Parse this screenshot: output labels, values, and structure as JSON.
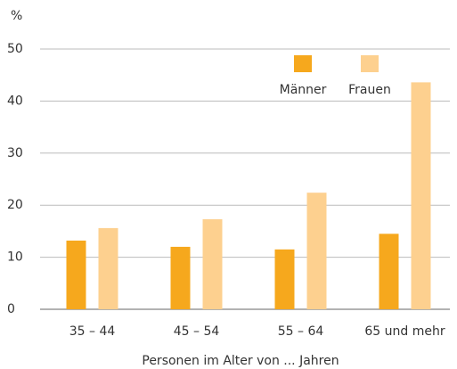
{
  "chart_data": {
    "type": "bar",
    "y_label": "%",
    "x_label": "Personen im Alter von ... Jahren",
    "categories": [
      "35 – 44",
      "45 – 54",
      "55 – 64",
      "65 und mehr"
    ],
    "series": [
      {
        "name": "Männer",
        "color": "#f6a81d",
        "values": [
          13.2,
          12.0,
          11.5,
          14.5
        ]
      },
      {
        "name": "Frauen",
        "color": "#fdd08f",
        "values": [
          15.6,
          17.3,
          22.4,
          43.6
        ]
      }
    ],
    "ylim": [
      0,
      50
    ],
    "yticks": [
      0,
      10,
      20,
      30,
      40,
      50
    ],
    "grid": true,
    "legend": "upper right"
  }
}
